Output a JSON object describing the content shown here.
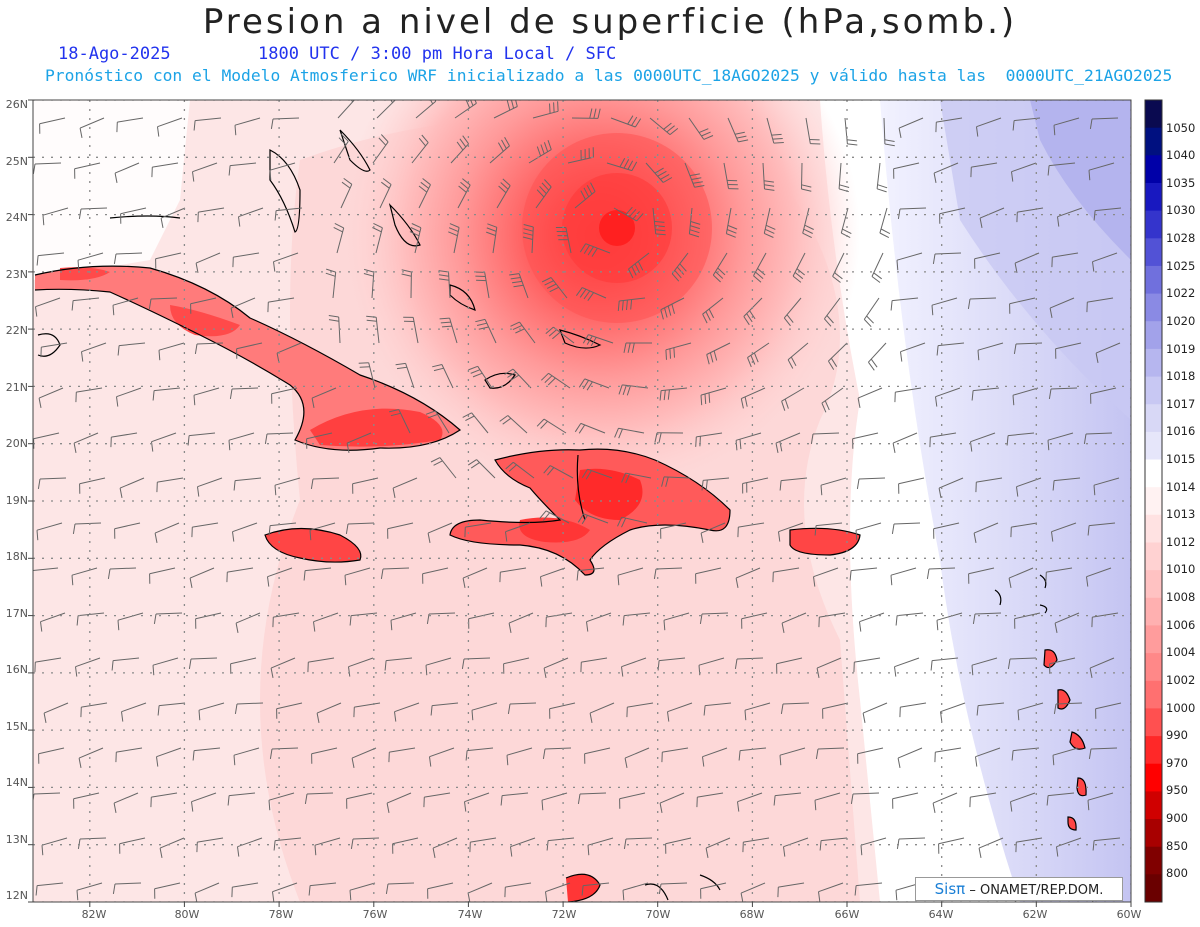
{
  "header": {
    "title": "Presion a nivel de superficie (hPa,somb.)",
    "date": "18-Ago-2025",
    "valid_time": "1800 UTC / 3:00 pm Hora Local / SFC",
    "forecast_note": "Pronóstico con el Modelo Atmosferico WRF inicializado a las 0000UTC_18AGO2025 y válido hasta las  0000UTC_21AGO2025"
  },
  "map": {
    "lat_labels": [
      "26N",
      "25N",
      "24N",
      "23N",
      "22N",
      "21N",
      "20N",
      "19N",
      "18N",
      "17N",
      "16N",
      "15N",
      "14N",
      "13N",
      "12N"
    ],
    "lon_labels": [
      "82W",
      "80W",
      "78W",
      "76W",
      "74W",
      "72W",
      "70W",
      "68W",
      "66W",
      "64W",
      "62W",
      "60W"
    ],
    "lat_range": [
      12,
      26
    ],
    "lon_range": [
      -83.2,
      -60
    ],
    "storm_center": {
      "lat": 23.75,
      "lon": -71.0
    }
  },
  "colorbar": {
    "levels": [
      "1050",
      "1040",
      "1035",
      "1030",
      "1028",
      "1025",
      "1022",
      "1020",
      "1019",
      "1018",
      "1017",
      "1016",
      "1015",
      "1014",
      "1013",
      "1012",
      "1010",
      "1008",
      "1006",
      "1004",
      "1002",
      "1000",
      "990",
      "970",
      "950",
      "900",
      "850",
      "800"
    ],
    "colors": [
      "#0a0a50",
      "#001080",
      "#0000a8",
      "#1818c0",
      "#3434cc",
      "#5252d6",
      "#7070dd",
      "#8a8ae4",
      "#a2a2ea",
      "#b6b6ef",
      "#c8c8f3",
      "#d8d8f6",
      "#e6e6fa",
      "#ffffff",
      "#fff2f2",
      "#ffe2e2",
      "#ffd2d2",
      "#ffc2c2",
      "#ffb0b0",
      "#ff9c9c",
      "#ff8888",
      "#ff7070",
      "#ff5050",
      "#ff2828",
      "#ff0000",
      "#d00000",
      "#a80000",
      "#800000"
    ]
  },
  "credit": {
    "brand": "Sisπ",
    "text": "– ONAMET/REP.DOM."
  }
}
